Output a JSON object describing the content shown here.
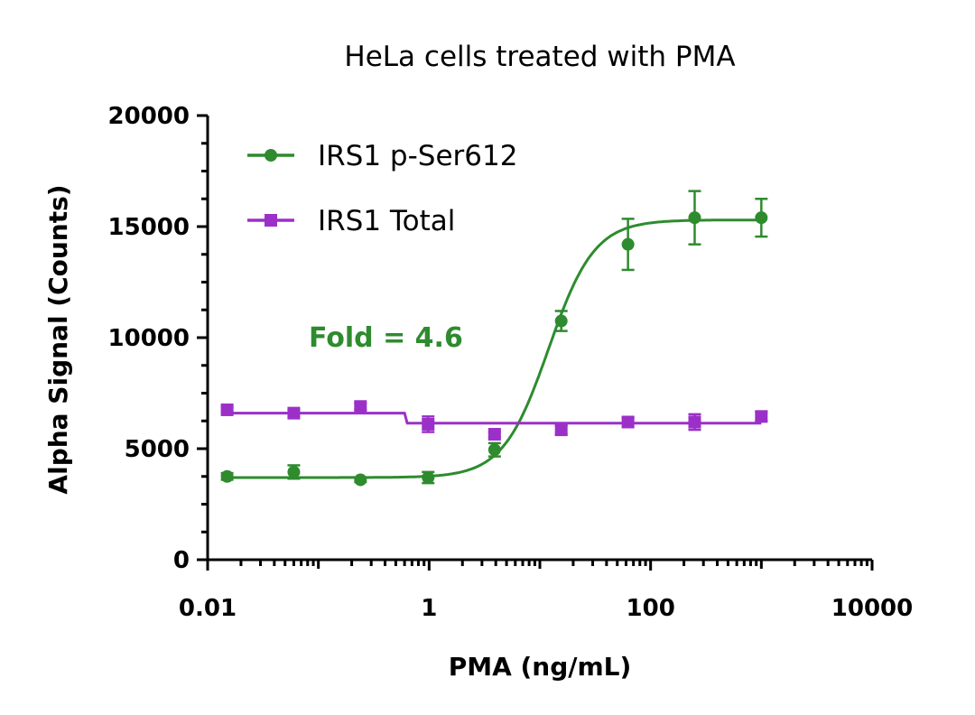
{
  "chart_data": {
    "type": "scatter",
    "title": "HeLa cells treated with PMA",
    "xlabel": "PMA (ng/mL)",
    "ylabel": "Alpha Signal (Counts)",
    "xscale": "log",
    "xlim": [
      0.01,
      10000
    ],
    "ylim": [
      0,
      20000
    ],
    "xticks": [
      "0.01",
      "1",
      "100",
      "10000"
    ],
    "yticks": [
      "0",
      "5000",
      "10000",
      "15000",
      "20000"
    ],
    "grid": false,
    "legend_position": "top-left",
    "annotation": {
      "text": "Fold = 4.6",
      "color": "#2e8b2e"
    },
    "series": [
      {
        "name": "IRS1 p-Ser612",
        "color": "#2e8b2e",
        "marker": "circle",
        "fit": "sigmoid",
        "x": [
          0.015,
          0.06,
          0.24,
          0.98,
          3.9,
          15.6,
          62.5,
          250,
          1000
        ],
        "y": [
          3750,
          3950,
          3600,
          3700,
          4950,
          10750,
          14200,
          15400,
          15400
        ],
        "yerr": [
          150,
          300,
          100,
          250,
          300,
          450,
          1150,
          1200,
          850
        ],
        "curve": {
          "bottom": 3700,
          "top": 15300,
          "ec50": 12,
          "hill": 2.1
        }
      },
      {
        "name": "IRS1 Total",
        "color": "#9b30c8",
        "marker": "square",
        "fit": "step",
        "x": [
          0.015,
          0.06,
          0.24,
          0.98,
          3.9,
          15.6,
          62.5,
          250,
          1000
        ],
        "y": [
          6750,
          6600,
          6900,
          6100,
          5650,
          5850,
          6200,
          6200,
          6450
        ],
        "yerr": [
          120,
          150,
          150,
          350,
          120,
          200,
          200,
          350,
          200
        ],
        "curve": {
          "left_level": 6600,
          "right_level": 6150,
          "step_x": 0.6
        }
      }
    ]
  }
}
